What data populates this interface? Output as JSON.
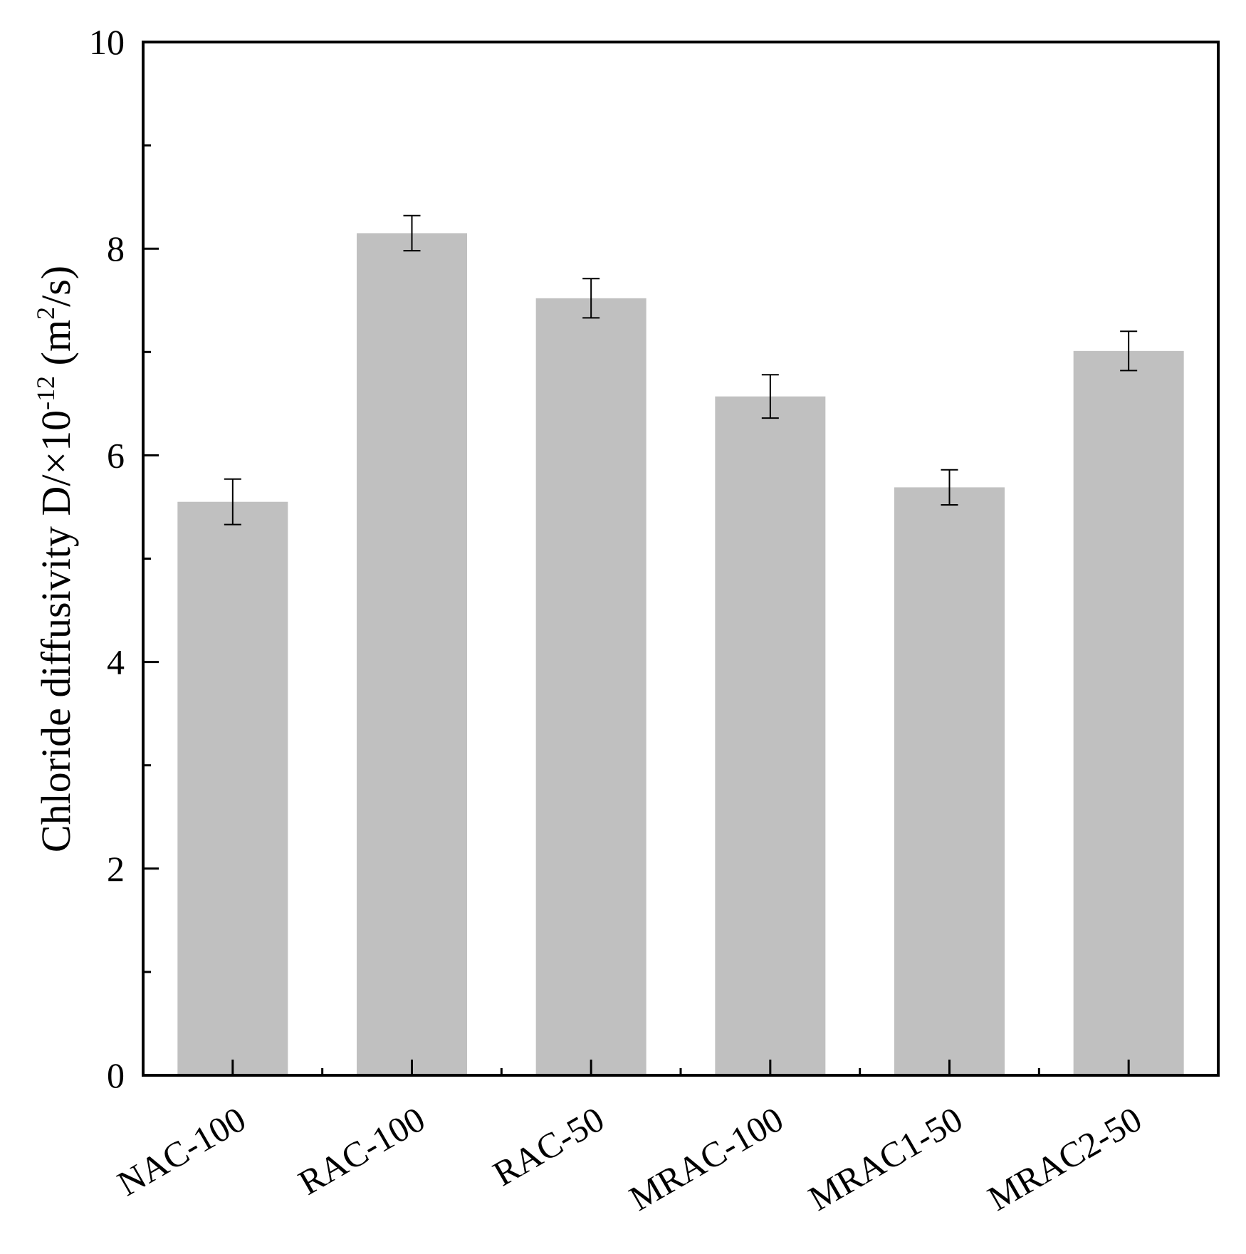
{
  "chart_data": {
    "type": "bar",
    "categories": [
      "NAC-100",
      "RAC-100",
      "RAC-50",
      "MRAC-100",
      "MRAC1-50",
      "MRAC2-50"
    ],
    "values": [
      5.55,
      8.15,
      7.52,
      6.57,
      5.69,
      7.01
    ],
    "errors": [
      0.22,
      0.17,
      0.19,
      0.21,
      0.17,
      0.19
    ],
    "ylabel": {
      "main": "Chloride diffusivity D/×10",
      "exp": "-12",
      "unit_open": " (m",
      "unit_exp": "2",
      "unit_close": "/s)"
    },
    "ylim": [
      0,
      10
    ],
    "yticks": [
      0,
      2,
      4,
      6,
      8,
      10
    ],
    "y_minor_ticks": [
      1,
      3,
      5,
      7,
      9
    ],
    "bar_color": "#c0c0c0",
    "error_color": "#000000",
    "grid": false,
    "legend": "none"
  }
}
